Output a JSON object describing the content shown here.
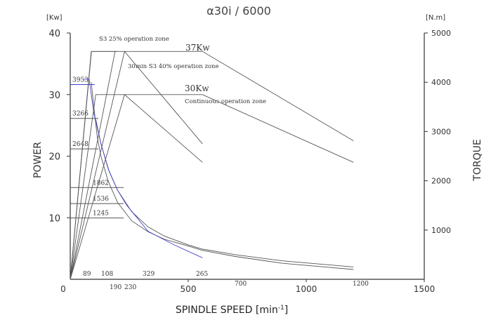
{
  "chart_data": {
    "type": "line",
    "title": "α30i / 6000",
    "xlabel": "SPINDLE SPEED [min",
    "xlabel_sup": "-1",
    "xlabel_end": "]",
    "ylabel_left": "POWER",
    "ylabel_right": "TORQUE",
    "y_unit_left": "[Kw]",
    "y_unit_right": "[N.m]",
    "xlim": [
      0,
      1500
    ],
    "ylim_left": [
      0,
      40
    ],
    "ylim_right": [
      0,
      5000
    ],
    "x_ticks": [
      "0",
      "500",
      "1000",
      "1500"
    ],
    "y_ticks_left": [
      "10",
      "20",
      "30",
      "40"
    ],
    "y_ticks_right": [
      "1000",
      "2000",
      "3000",
      "4000",
      "5000"
    ],
    "grid": false,
    "annotations": {
      "s3_25": "S3 25% operation zone",
      "s3_40": "30min S3 40% operation zone",
      "p37": "37Kw",
      "p30": "30Kw",
      "continuous": "Continuous operation zone"
    },
    "torque_labels": [
      "3953",
      "3266",
      "2648",
      "1862",
      "1536",
      "1245"
    ],
    "torque_levels_nm": [
      3953,
      3266,
      2648,
      1862,
      1536,
      1245
    ],
    "speed_labels": [
      "89",
      "108",
      "190",
      "230",
      "329",
      "265",
      "700",
      "1200"
    ],
    "series": [
      {
        "name": "37Kw",
        "color": "#555555",
        "points": [
          [
            0,
            0
          ],
          [
            90,
            37
          ],
          [
            560,
            37
          ],
          [
            1200,
            22.5
          ]
        ]
      },
      {
        "name": "30Kw",
        "color": "#555555",
        "points": [
          [
            0,
            0
          ],
          [
            108,
            30
          ],
          [
            560,
            30
          ],
          [
            1200,
            19
          ]
        ]
      },
      {
        "color": "#555555",
        "points": [
          [
            0,
            0
          ],
          [
            230,
            37
          ],
          [
            560,
            22
          ]
        ]
      },
      {
        "color": "#555555",
        "points": [
          [
            0,
            0
          ],
          [
            230,
            30
          ],
          [
            560,
            19
          ]
        ]
      },
      {
        "color": "#555555",
        "points": [
          [
            0,
            0
          ],
          [
            89,
            37
          ],
          [
            200,
            37
          ]
        ]
      },
      {
        "color": "#555555",
        "points": [
          [
            0,
            0
          ],
          [
            190,
            37
          ]
        ]
      },
      {
        "color": "#555555",
        "points": [
          [
            89,
            32
          ],
          [
            100,
            28
          ],
          [
            115,
            23
          ],
          [
            130,
            20
          ],
          [
            160,
            16
          ],
          [
            200,
            12.5
          ],
          [
            260,
            9.5
          ],
          [
            330,
            7.7
          ],
          [
            400,
            6.5
          ],
          [
            500,
            5.4
          ],
          [
            560,
            4.7
          ],
          [
            700,
            3.7
          ],
          [
            900,
            2.6
          ],
          [
            1200,
            1.6
          ]
        ]
      },
      {
        "color": "#555555",
        "points": [
          [
            108,
            26
          ],
          [
            130,
            22
          ],
          [
            160,
            18
          ],
          [
            200,
            14.5
          ],
          [
            260,
            11
          ],
          [
            330,
            8.5
          ],
          [
            400,
            7
          ],
          [
            500,
            5.6
          ],
          [
            560,
            4.9
          ],
          [
            700,
            4
          ],
          [
            900,
            3
          ],
          [
            1200,
            2
          ]
        ]
      },
      {
        "color": "#4444cc",
        "points": [
          [
            55,
            32.5
          ],
          [
            80,
            32.5
          ],
          [
            100,
            27
          ],
          [
            130,
            22
          ],
          [
            165,
            17.5
          ],
          [
            200,
            14.5
          ],
          [
            240,
            12
          ],
          [
            330,
            7.8
          ],
          [
            440,
            5.6
          ],
          [
            560,
            3.5
          ]
        ]
      }
    ]
  }
}
